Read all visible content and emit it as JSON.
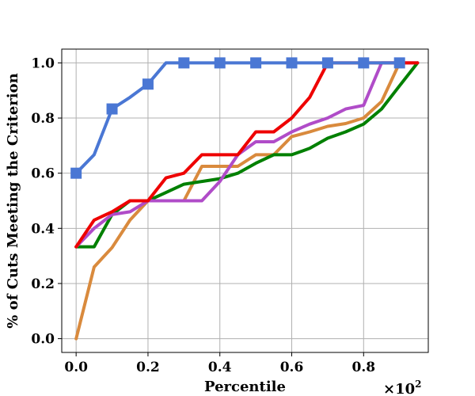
{
  "chart_data": {
    "type": "line",
    "title": "",
    "xlabel": "Percentile",
    "ylabel": "% of Cuts Meeting the Criterion",
    "x_scale_label": "×10",
    "x_scale_exponent": "2",
    "xlim": [
      -0.04,
      0.98
    ],
    "ylim": [
      -0.05,
      1.05
    ],
    "xticks": [
      0.0,
      0.2,
      0.4,
      0.6,
      0.8
    ],
    "xtick_labels": [
      "0.0",
      "0.2",
      "0.4",
      "0.6",
      "0.8"
    ],
    "yticks": [
      0.0,
      0.2,
      0.4,
      0.6,
      0.8,
      1.0
    ],
    "ytick_labels": [
      "0.0",
      "0.2",
      "0.4",
      "0.6",
      "0.8",
      "1.0"
    ],
    "grid": true,
    "series": [
      {
        "name": "orange",
        "color": "#d98a3d",
        "x": [
          0.0,
          0.05,
          0.1,
          0.15,
          0.2,
          0.25,
          0.3,
          0.35,
          0.4,
          0.45,
          0.5,
          0.55,
          0.6,
          0.65,
          0.7,
          0.75,
          0.8,
          0.85,
          0.9
        ],
        "y": [
          0.0,
          0.26,
          0.33,
          0.43,
          0.5,
          0.5,
          0.5,
          0.625,
          0.625,
          0.625,
          0.667,
          0.667,
          0.733,
          0.75,
          0.77,
          0.78,
          0.8,
          0.86,
          1.0
        ]
      },
      {
        "name": "green",
        "color": "#008000",
        "x": [
          0.0,
          0.05,
          0.1,
          0.15,
          0.2,
          0.25,
          0.3,
          0.35,
          0.4,
          0.45,
          0.5,
          0.55,
          0.6,
          0.65,
          0.7,
          0.75,
          0.8,
          0.85,
          0.9,
          0.95
        ],
        "y": [
          0.333,
          0.333,
          0.45,
          0.5,
          0.5,
          0.53,
          0.56,
          0.57,
          0.58,
          0.6,
          0.636,
          0.667,
          0.667,
          0.69,
          0.727,
          0.75,
          0.778,
          0.833,
          0.917,
          1.0
        ]
      },
      {
        "name": "purple",
        "color": "#b04cc8",
        "x": [
          0.0,
          0.05,
          0.1,
          0.15,
          0.2,
          0.25,
          0.3,
          0.35,
          0.4,
          0.45,
          0.5,
          0.55,
          0.6,
          0.65,
          0.7,
          0.75,
          0.8,
          0.85,
          0.9,
          0.95
        ],
        "y": [
          0.333,
          0.4,
          0.45,
          0.46,
          0.5,
          0.5,
          0.5,
          0.5,
          0.57,
          0.667,
          0.714,
          0.714,
          0.75,
          0.778,
          0.8,
          0.833,
          0.846,
          1.0,
          1.0,
          1.0
        ]
      },
      {
        "name": "red",
        "color": "#ee0000",
        "x": [
          0.0,
          0.05,
          0.1,
          0.15,
          0.2,
          0.25,
          0.3,
          0.35,
          0.4,
          0.45,
          0.5,
          0.55,
          0.6,
          0.65,
          0.7,
          0.75,
          0.8,
          0.85,
          0.9,
          0.95
        ],
        "y": [
          0.333,
          0.43,
          0.46,
          0.5,
          0.5,
          0.583,
          0.6,
          0.667,
          0.667,
          0.667,
          0.75,
          0.75,
          0.8,
          0.875,
          1.0,
          1.0,
          1.0,
          1.0,
          1.0,
          1.0
        ]
      },
      {
        "name": "blue",
        "color": "#4a77d4",
        "marker": "square",
        "x": [
          0.0,
          0.05,
          0.1,
          0.15,
          0.2,
          0.25,
          0.3,
          0.35,
          0.4,
          0.45,
          0.5,
          0.55,
          0.6,
          0.65,
          0.7,
          0.75,
          0.8,
          0.85,
          0.9
        ],
        "y": [
          0.6,
          0.667,
          0.833,
          0.875,
          0.923,
          1.0,
          1.0,
          1.0,
          1.0,
          1.0,
          1.0,
          1.0,
          1.0,
          1.0,
          1.0,
          1.0,
          1.0,
          1.0,
          1.0
        ],
        "marker_x": [
          0.0,
          0.1,
          0.2,
          0.3,
          0.4,
          0.5,
          0.6,
          0.7,
          0.8,
          0.9
        ],
        "marker_y": [
          0.6,
          0.833,
          0.923,
          1.0,
          1.0,
          1.0,
          1.0,
          1.0,
          1.0,
          1.0
        ]
      }
    ]
  }
}
